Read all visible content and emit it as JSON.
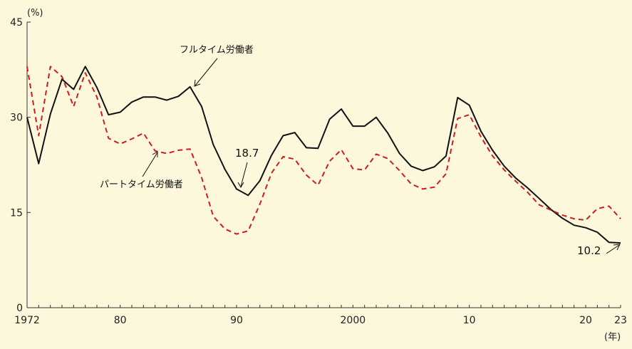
{
  "chart_data": {
    "type": "line",
    "y_unit": "(%)",
    "x_unit": "(年)",
    "ylim": [
      0,
      45
    ],
    "yticks": [
      0,
      15,
      30,
      45
    ],
    "xlim": [
      1972,
      2023
    ],
    "xticks": [
      {
        "year": 1972,
        "label": "1972"
      },
      {
        "year": 1980,
        "label": "80"
      },
      {
        "year": 1990,
        "label": "90"
      },
      {
        "year": 2000,
        "label": "2000"
      },
      {
        "year": 2010,
        "label": "10"
      },
      {
        "year": 2020,
        "label": "20"
      },
      {
        "year": 2023,
        "label": "23"
      }
    ],
    "x": [
      1972,
      1973,
      1974,
      1975,
      1976,
      1977,
      1978,
      1979,
      1980,
      1981,
      1982,
      1983,
      1984,
      1985,
      1986,
      1987,
      1988,
      1989,
      1990,
      1991,
      1992,
      1993,
      1994,
      1995,
      1996,
      1997,
      1998,
      1999,
      2000,
      2001,
      2002,
      2003,
      2004,
      2005,
      2006,
      2007,
      2008,
      2009,
      2010,
      2011,
      2012,
      2013,
      2014,
      2015,
      2016,
      2017,
      2018,
      2019,
      2020,
      2021,
      2022,
      2023
    ],
    "series": [
      {
        "name": "フルタイム労働者",
        "color": "#111111",
        "style": "solid",
        "values": [
          30.0,
          22.7,
          30.5,
          36.0,
          34.4,
          38.0,
          34.7,
          30.4,
          30.8,
          32.4,
          33.2,
          33.2,
          32.7,
          33.3,
          34.8,
          31.7,
          25.7,
          21.8,
          18.7,
          17.7,
          20.0,
          24.0,
          27.1,
          27.6,
          25.2,
          25.1,
          29.7,
          31.3,
          28.6,
          28.6,
          30.0,
          27.5,
          24.3,
          22.3,
          21.6,
          22.2,
          23.9,
          33.1,
          31.9,
          27.8,
          24.8,
          22.3,
          20.4,
          18.9,
          17.2,
          15.5,
          14.1,
          13.0,
          12.6,
          11.9,
          10.3,
          10.2
        ]
      },
      {
        "name": "パートタイム労働者",
        "color": "#cc1e1e",
        "style": "dashed",
        "values": [
          38.0,
          27.1,
          38.0,
          36.4,
          31.7,
          37.0,
          33.2,
          26.7,
          25.8,
          26.6,
          27.5,
          24.7,
          24.3,
          24.8,
          25.0,
          20.5,
          14.4,
          12.4,
          11.6,
          12.1,
          16.3,
          21.2,
          23.8,
          23.4,
          20.9,
          19.3,
          23.1,
          24.9,
          21.9,
          21.7,
          24.2,
          23.5,
          21.6,
          19.5,
          18.7,
          19.0,
          21.1,
          29.8,
          30.4,
          26.9,
          23.9,
          21.7,
          19.9,
          18.2,
          16.2,
          15.4,
          14.6,
          14.0,
          13.8,
          15.6,
          16.0,
          14.0
        ]
      }
    ],
    "annotations": [
      {
        "text": "フルタイム労働者"
      },
      {
        "text": "パートタイム労働者"
      },
      {
        "text": "18.7"
      },
      {
        "text": "10.2"
      }
    ]
  }
}
